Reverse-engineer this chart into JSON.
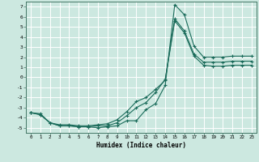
{
  "xlabel": "Humidex (Indice chaleur)",
  "xlim": [
    -0.5,
    23.5
  ],
  "ylim": [
    -5.5,
    7.5
  ],
  "xticks": [
    0,
    1,
    2,
    3,
    4,
    5,
    6,
    7,
    8,
    9,
    10,
    11,
    12,
    13,
    14,
    15,
    16,
    17,
    18,
    19,
    20,
    21,
    22,
    23
  ],
  "yticks": [
    -5,
    -4,
    -3,
    -2,
    -1,
    0,
    1,
    2,
    3,
    4,
    5,
    6,
    7
  ],
  "background_color": "#cce8e0",
  "grid_color": "#ffffff",
  "line_color": "#1a6b5a",
  "line1_x": [
    0,
    1,
    2,
    3,
    4,
    5,
    6,
    7,
    8,
    9,
    10,
    11,
    12,
    13,
    14,
    15,
    16,
    17,
    18,
    19,
    20,
    21,
    22,
    23
  ],
  "line1_y": [
    -3.5,
    -3.7,
    -4.5,
    -4.8,
    -4.8,
    -4.9,
    -4.9,
    -5.0,
    -4.9,
    -4.8,
    -4.3,
    -4.3,
    -3.2,
    -2.6,
    -0.8,
    7.2,
    6.2,
    3.1,
    2.0,
    2.0,
    2.0,
    2.1,
    2.1,
    2.1
  ],
  "line2_x": [
    0,
    1,
    2,
    3,
    4,
    5,
    6,
    7,
    8,
    9,
    10,
    11,
    12,
    13,
    14,
    15,
    16,
    17,
    18,
    19,
    20,
    21,
    22,
    23
  ],
  "line2_y": [
    -3.5,
    -3.7,
    -4.5,
    -4.8,
    -4.8,
    -4.9,
    -4.9,
    -4.8,
    -4.8,
    -4.5,
    -3.8,
    -3.0,
    -2.5,
    -1.5,
    -0.2,
    5.8,
    4.6,
    2.3,
    1.5,
    1.5,
    1.5,
    1.6,
    1.6,
    1.6
  ],
  "line3_x": [
    0,
    1,
    2,
    3,
    4,
    5,
    6,
    7,
    8,
    9,
    10,
    11,
    12,
    13,
    14,
    15,
    16,
    17,
    18,
    19,
    20,
    21,
    22,
    23
  ],
  "line3_y": [
    -3.5,
    -3.6,
    -4.5,
    -4.7,
    -4.7,
    -4.8,
    -4.8,
    -4.7,
    -4.6,
    -4.2,
    -3.4,
    -2.4,
    -2.0,
    -1.2,
    -0.3,
    5.6,
    4.4,
    2.1,
    1.2,
    1.1,
    1.1,
    1.2,
    1.2,
    1.2
  ]
}
